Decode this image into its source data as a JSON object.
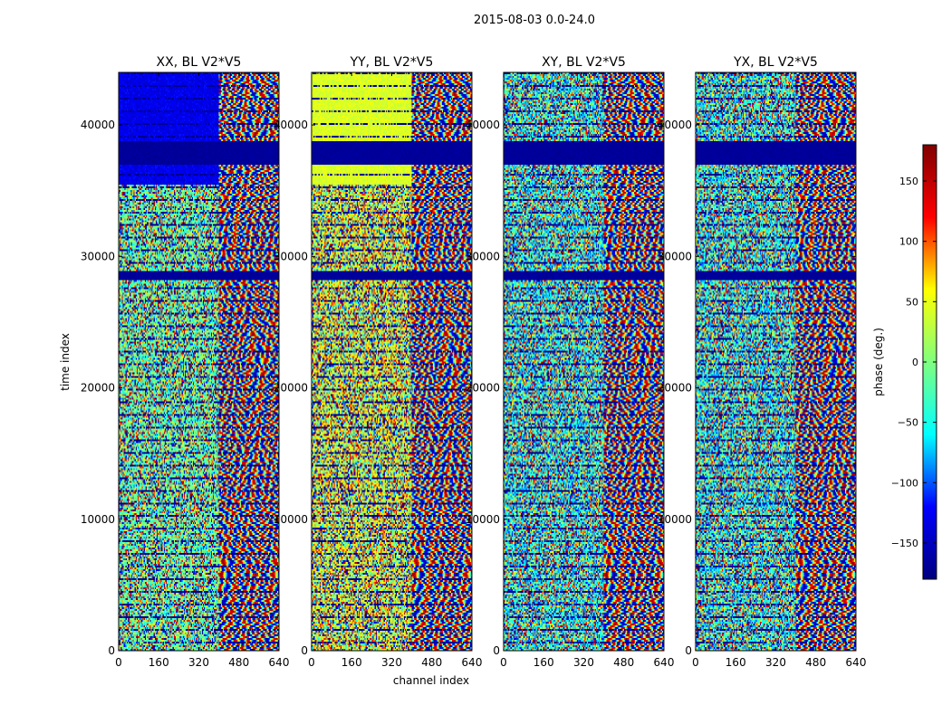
{
  "figure": {
    "suptitle": "2015-08-03 0.0-24.0"
  },
  "chart_data": {
    "type": "heatmap",
    "title": "2015-08-03 0.0-24.0",
    "panels": [
      {
        "title": "XX, BL V2*V5"
      },
      {
        "title": "YY, BL V2*V5"
      },
      {
        "title": "XY, BL V2*V5"
      },
      {
        "title": "YX, BL V2*V5"
      }
    ],
    "xlabel": "channel index",
    "ylabel": "time index",
    "xlim": [
      0,
      640
    ],
    "ylim": [
      0,
      44000
    ],
    "xticks": [
      0,
      160,
      320,
      480,
      640
    ],
    "xtick_labels": [
      "0",
      "160",
      "320",
      "480",
      "640"
    ],
    "yticks": [
      0,
      10000,
      20000,
      30000,
      40000
    ],
    "ytick_labels": [
      "0",
      "10000",
      "20000",
      "30000",
      "40000"
    ],
    "colorbar": {
      "label": "phase (deg.)",
      "range": [
        -180,
        180
      ],
      "ticks": [
        -150,
        -100,
        -50,
        0,
        50,
        100,
        150
      ],
      "tick_labels": [
        "−150",
        "−100",
        "−50",
        "0",
        "50",
        "100",
        "150"
      ],
      "colormap": "jet"
    },
    "colormap_stops": [
      "#00007f",
      "#0000ff",
      "#00ffff",
      "#7fff7f",
      "#ffff00",
      "#ff0000",
      "#7f0000"
    ],
    "notes_value_features": {
      "flagged_rows_time_index": [
        37700,
        38600,
        28200,
        29000
      ],
      "channel_split": 400
    }
  }
}
